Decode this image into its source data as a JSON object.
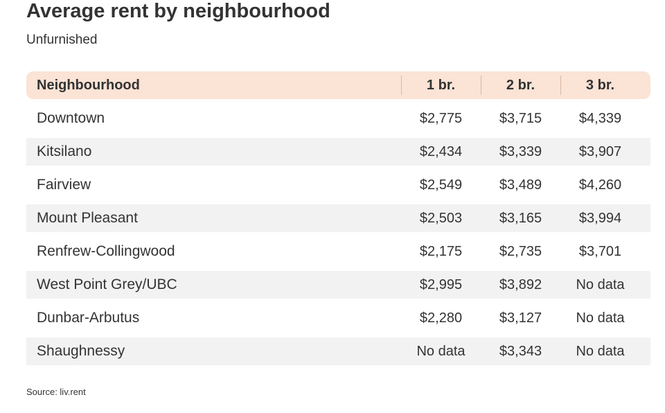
{
  "title": "Average rent by neighbourhood",
  "subtitle": "Unfurnished",
  "source": "Source: liv.rent",
  "colors": {
    "header_background": "#fbe3d5",
    "stripe_background": "#f2f2f2",
    "text": "#333333"
  },
  "chart_data": {
    "type": "table",
    "title": "Average rent by neighbourhood",
    "subtitle": "Unfurnished",
    "columns": [
      "Neighbourhood",
      "1 br.",
      "2 br.",
      "3 br."
    ],
    "rows": [
      [
        "Downtown",
        "$2,775",
        "$3,715",
        "$4,339"
      ],
      [
        "Kitsilano",
        "$2,434",
        "$3,339",
        "$3,907"
      ],
      [
        "Fairview",
        "$2,549",
        "$3,489",
        "$4,260"
      ],
      [
        "Mount Pleasant",
        "$2,503",
        "$3,165",
        "$3,994"
      ],
      [
        "Renfrew-Collingwood",
        "$2,175",
        "$2,735",
        "$3,701"
      ],
      [
        "West Point Grey/UBC",
        "$2,995",
        "$3,892",
        "No data"
      ],
      [
        "Dunbar-Arbutus",
        "$2,280",
        "$3,127",
        "No data"
      ],
      [
        "Shaughnessy",
        "No data",
        "$3,343",
        "No data"
      ]
    ]
  }
}
